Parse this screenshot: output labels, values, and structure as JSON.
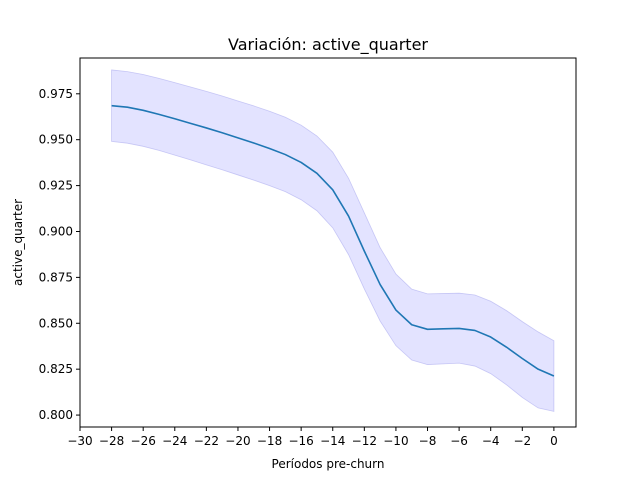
{
  "chart_data": {
    "type": "line",
    "title": "Variación: active_quarter",
    "xlabel": "Períodos pre-churn",
    "ylabel": "active_quarter",
    "xlim": [
      -30,
      1.4
    ],
    "ylim": [
      0.7935,
      0.9945
    ],
    "xticks": [
      -30,
      -28,
      -26,
      -24,
      -22,
      -20,
      -18,
      -16,
      -14,
      -12,
      -10,
      -8,
      -6,
      -4,
      -2,
      0
    ],
    "xtick_labels": [
      "−30",
      "−28",
      "−26",
      "−24",
      "−22",
      "−20",
      "−18",
      "−16",
      "−14",
      "−12",
      "−10",
      "−8",
      "−6",
      "−4",
      "−2",
      "0"
    ],
    "yticks": [
      0.8,
      0.825,
      0.85,
      0.875,
      0.9,
      0.925,
      0.95,
      0.975
    ],
    "ytick_labels": [
      "0.800",
      "0.825",
      "0.850",
      "0.875",
      "0.900",
      "0.925",
      "0.950",
      "0.975"
    ],
    "grid": false,
    "colors": {
      "line": "#1f77b4",
      "band": "#0000ff",
      "band_opacity": 0.11,
      "band_edge": "#aaaaee"
    },
    "series": [
      {
        "x": [
          -28,
          -27,
          -26,
          -25,
          -24,
          -23,
          -22,
          -21,
          -20,
          -19,
          -18,
          -17,
          -16,
          -15,
          -14,
          -13,
          -12,
          -11,
          -10,
          -9,
          -8,
          -7,
          -6,
          -5,
          -4,
          -3,
          -2,
          -1,
          0
        ],
        "y": [
          0.9685,
          0.9677,
          0.966,
          0.9638,
          0.9614,
          0.9589,
          0.9564,
          0.9538,
          0.951,
          0.9482,
          0.9452,
          0.9419,
          0.9376,
          0.9317,
          0.9227,
          0.9084,
          0.8893,
          0.8711,
          0.8572,
          0.8492,
          0.8467,
          0.847,
          0.8472,
          0.8461,
          0.8425,
          0.837,
          0.8308,
          0.825,
          0.8213
        ],
        "lower": [
          0.9491,
          0.9481,
          0.9464,
          0.9442,
          0.9416,
          0.939,
          0.9363,
          0.9336,
          0.9308,
          0.928,
          0.925,
          0.9217,
          0.9173,
          0.9113,
          0.902,
          0.8874,
          0.8687,
          0.8512,
          0.8378,
          0.83,
          0.8275,
          0.8279,
          0.8283,
          0.8267,
          0.8226,
          0.8165,
          0.8096,
          0.8039,
          0.802
        ],
        "upper": [
          0.988,
          0.9871,
          0.9855,
          0.9834,
          0.9811,
          0.9787,
          0.9763,
          0.9738,
          0.9711,
          0.9684,
          0.9655,
          0.9622,
          0.9579,
          0.952,
          0.9432,
          0.929,
          0.9101,
          0.8912,
          0.8768,
          0.8686,
          0.866,
          0.8662,
          0.8664,
          0.8654,
          0.862,
          0.8569,
          0.8509,
          0.8453,
          0.8405
        ]
      }
    ]
  }
}
